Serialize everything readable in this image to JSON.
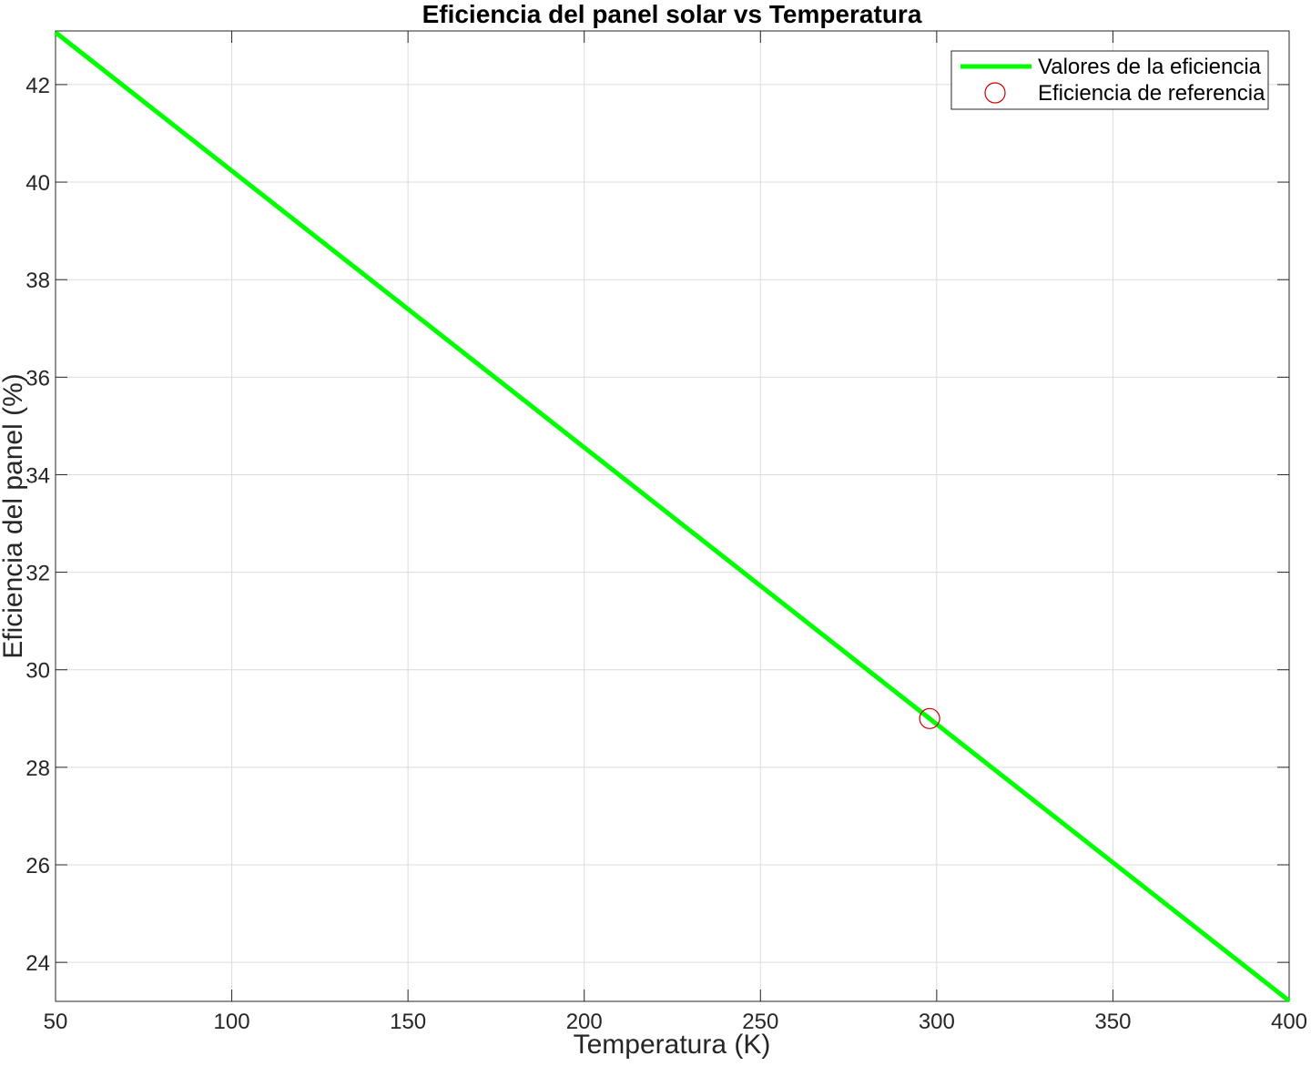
{
  "chart_data": {
    "type": "line",
    "title": "Eficiencia del panel solar vs Temperatura",
    "xlabel": "Temperatura (K)",
    "ylabel": "Eficiencia del panel (%)",
    "xlim": [
      50,
      400
    ],
    "ylim": [
      23.2,
      43.1
    ],
    "xticks": [
      50,
      100,
      150,
      200,
      250,
      300,
      350,
      400
    ],
    "yticks": [
      24,
      26,
      28,
      30,
      32,
      34,
      36,
      38,
      40,
      42
    ],
    "grid": true,
    "legend_position": "top-right",
    "series": [
      {
        "name": "Valores de la eficiencia",
        "kind": "line",
        "color": "#00ff00",
        "x": [
          50,
          400
        ],
        "y": [
          43.07,
          23.21
        ]
      },
      {
        "name": "Eficiencia de referencia",
        "kind": "marker-circle",
        "color": "#cc0000",
        "x": [
          298
        ],
        "y": [
          29.0
        ]
      }
    ]
  }
}
